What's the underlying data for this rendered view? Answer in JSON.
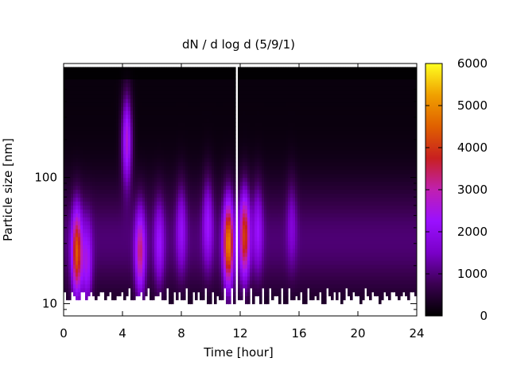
{
  "chart_data": {
    "type": "heatmap",
    "title": "dN / d log d (5/9/1)",
    "xlabel": "Time [hour]",
    "ylabel": "Particle size [nm]",
    "xlim": [
      0,
      24
    ],
    "ylim": [
      8,
      800
    ],
    "y_scale": "log",
    "x_ticks": [
      0,
      4,
      8,
      12,
      16,
      20,
      24
    ],
    "x_tick_labels": [
      "0",
      "4",
      "8",
      "12",
      "16",
      "20",
      "24"
    ],
    "y_ticks": [
      10,
      100
    ],
    "y_tick_labels": [
      "10",
      "100"
    ],
    "colorbar": {
      "range": [
        0,
        6000
      ],
      "ticks": [
        0,
        1000,
        2000,
        3000,
        4000,
        5000,
        6000
      ],
      "tick_labels": [
        "0",
        "1000",
        "2000",
        "3000",
        "4000",
        "5000",
        "6000"
      ],
      "colormap": [
        "#000000",
        "#3a0050",
        "#7a00c8",
        "#9a10ff",
        "#c020b0",
        "#c82020",
        "#e06000",
        "#f0a000",
        "#ffff20"
      ]
    },
    "data_gap_hours": [
      11.6,
      11.9
    ],
    "size_range_nm": [
      10,
      750
    ],
    "bursts": [
      {
        "time": 0.9,
        "diameter": 25,
        "peak": 3500
      },
      {
        "time": 1.6,
        "diameter": 20,
        "peak": 1600
      },
      {
        "time": 4.3,
        "diameter": 200,
        "peak": 2500
      },
      {
        "time": 5.2,
        "diameter": 25,
        "peak": 2400
      },
      {
        "time": 6.5,
        "diameter": 30,
        "peak": 1300
      },
      {
        "time": 8.0,
        "diameter": 40,
        "peak": 1200
      },
      {
        "time": 9.8,
        "diameter": 45,
        "peak": 1400
      },
      {
        "time": 11.2,
        "diameter": 30,
        "peak": 4000
      },
      {
        "time": 12.3,
        "diameter": 35,
        "peak": 3200
      },
      {
        "time": 13.2,
        "diameter": 40,
        "peak": 1300
      },
      {
        "time": 15.5,
        "diameter": 45,
        "peak": 800
      }
    ],
    "background_level": 850
  }
}
